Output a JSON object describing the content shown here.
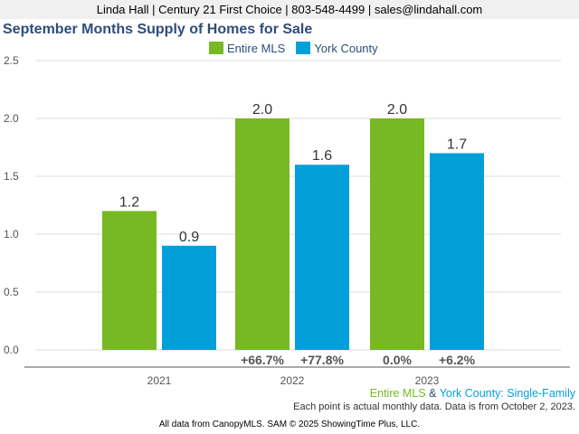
{
  "header": {
    "contact": "Linda Hall | Century 21 First Choice | 803-548-4499 | sales@lindahall.com"
  },
  "chart_data": {
    "type": "bar",
    "title": "September Months Supply of Homes for Sale",
    "categories": [
      "2021",
      "2022",
      "2023"
    ],
    "series": [
      {
        "name": "Entire MLS",
        "color": "#77b922",
        "values": [
          1.2,
          2.0,
          2.0
        ],
        "labels": [
          "1.2",
          "2.0",
          "2.0"
        ]
      },
      {
        "name": "York County",
        "color": "#039fdb",
        "values": [
          0.9,
          1.6,
          1.7
        ],
        "labels": [
          "0.9",
          "1.6",
          "1.7"
        ]
      }
    ],
    "change_labels": [
      [
        "",
        ""
      ],
      [
        "+66.7%",
        "+77.8%"
      ],
      [
        "0.0%",
        "+6.2%"
      ]
    ],
    "y_ticks": [
      "0.0",
      "0.5",
      "1.0",
      "1.5",
      "2.0",
      "2.5"
    ],
    "ylim": [
      0,
      2.5
    ],
    "legend_position": "top",
    "grid": true
  },
  "footer": {
    "series_a": "Entire MLS",
    "joiner": " & ",
    "series_b": "York County",
    "suffix": ": Single-Family",
    "note": "Each point is actual monthly data. Data is from October 2, 2023.",
    "credit": "All data from CanopyMLS. SAM © 2025 ShowingTime Plus, LLC."
  }
}
